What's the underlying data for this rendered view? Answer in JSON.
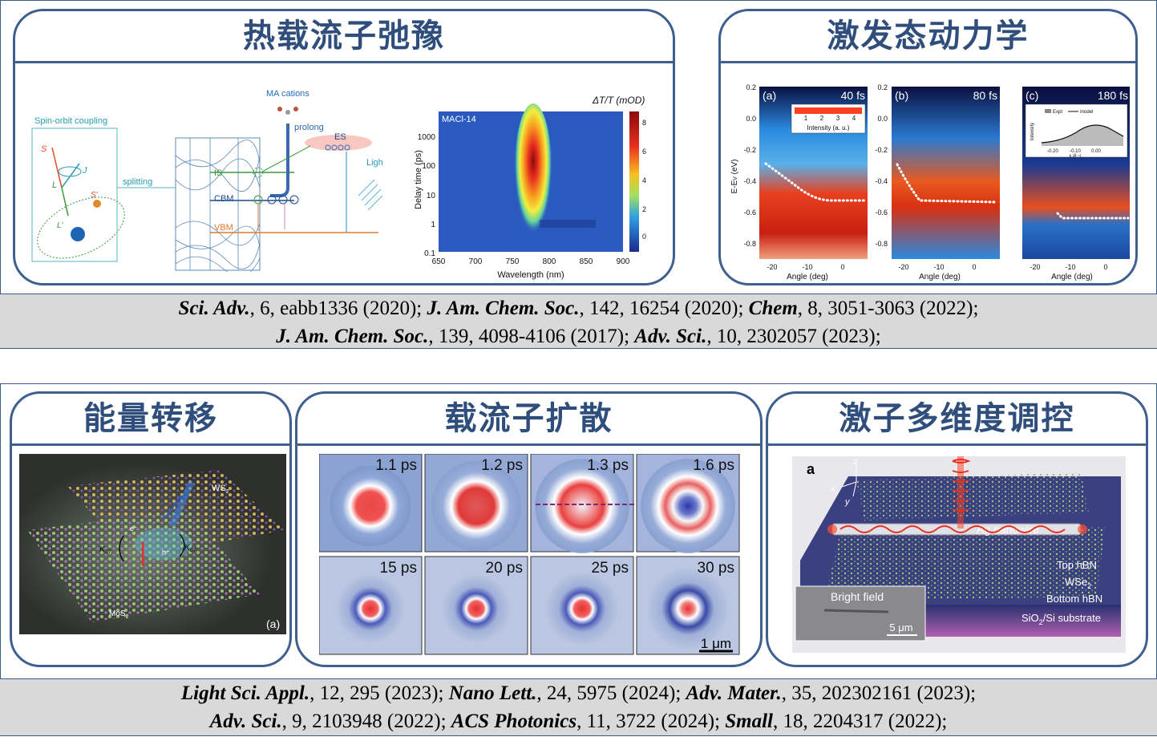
{
  "top_section": {
    "card_hot_carrier": {
      "title": "热载流子弛豫"
    },
    "card_excited_state": {
      "title": "激发态动力学"
    },
    "citations": [
      [
        {
          "j": "Sci. Adv.",
          "d": ", 6, eabb1336 (2020); "
        },
        {
          "j": "J. Am. Chem. Soc.",
          "d": ", 142, 16254 (2020); "
        },
        {
          "j": "Chem",
          "d": ", 8, 3051-3063 (2022);"
        }
      ],
      [
        {
          "j": "J. Am. Chem. Soc.",
          "d": ", 139, 4098-4106 (2017); "
        },
        {
          "j": "Adv. Sci.",
          "d": ", 10, 2302057 (2023);"
        }
      ]
    ]
  },
  "diagram": {
    "spin_orbit": "Spin-orbit coupling",
    "s_label": "S",
    "j_label": "J",
    "l_label": "L",
    "s_prime": "S'",
    "l_prime": "L'",
    "splitting": "splitting",
    "ma_cations": "MA cations",
    "prolong": "prolong",
    "es": "ES",
    "is": "IS",
    "cbm": "CBM",
    "vbm": "VBM",
    "light": "Light"
  },
  "heatmap": {
    "title": "ΔT/T (mOD)",
    "sample": "MACl-14",
    "xlabel": "Wavelength (nm)",
    "ylabel": "Delay time (ps)",
    "xticks": [
      "650",
      "700",
      "750",
      "800",
      "850",
      "900"
    ],
    "yticks": [
      "1000",
      "100",
      "10",
      "1",
      "0.1"
    ],
    "cticks": [
      "8",
      "6",
      "4",
      "2",
      "0"
    ]
  },
  "arpes": {
    "ylabel": "E-E",
    "ylabel_sub": "V",
    "ylabel_unit": " (eV)",
    "yticks": [
      "0.2",
      "0.0",
      "-0.2",
      "-0.4",
      "-0.6",
      "-0.8"
    ],
    "xticks": [
      "-20",
      "-10",
      "0"
    ],
    "xlabel": "Angle (deg)",
    "panels": [
      {
        "tag": "(a)",
        "time": "40 fs"
      },
      {
        "tag": "(b)",
        "time": "80 fs"
      },
      {
        "tag": "(c)",
        "time": "180 fs"
      }
    ],
    "intensity_ticks": [
      "1",
      "2",
      "3",
      "4"
    ],
    "intensity_label": "Intensity (a. u.)",
    "inset_legend_expt": "Expt",
    "inset_legend_model": "model",
    "inset_ylabel": "Intensity",
    "inset_xticks": [
      "-0.20",
      "-0.10",
      "0.00"
    ],
    "inset_xlabel": "k (Å⁻¹)"
  },
  "bottom_section": {
    "card_energy": {
      "title": "能量转移"
    },
    "card_diffusion": {
      "title": "载流子扩散"
    },
    "card_exciton": {
      "title": "激子多维度调控"
    },
    "citations": [
      [
        {
          "j": "Light Sci. Appl.",
          "d": ", 12, 295 (2023); "
        },
        {
          "j": "Nano Lett.",
          "d": ", 24, 5975 (2024); "
        },
        {
          "j": "Adv. Mater.",
          "d": ", 35, 202302161 (2023);"
        }
      ],
      [
        {
          "j": "Adv. Sci.",
          "d": ", 9, 2103948 (2022); "
        },
        {
          "j": "ACS Photonics",
          "d": ", 11, 3722 (2024); "
        },
        {
          "j": "Small",
          "d": ", 18, 2204317 (2022);"
        }
      ]
    ]
  },
  "energy_transfer": {
    "ws2": "WS",
    "ws2_sub": "2",
    "mos2": "MoS",
    "mos2_sub": "2",
    "kct_left": "K",
    "kct_right": "K",
    "kct_sub": "CT",
    "electron": "e⁻",
    "hole": "h⁺",
    "panel": "(a)"
  },
  "diffusion": {
    "cells": [
      "1.1 ps",
      "1.2 ps",
      "1.3 ps",
      "1.6 ps",
      "15 ps",
      "20 ps",
      "25 ps",
      "30 ps"
    ],
    "scalebar": "1 μm"
  },
  "exciton": {
    "panel": "a",
    "axis_z": "z",
    "axis_x": "x",
    "axis_y": "y",
    "nanowire": "Ag nanowire",
    "top_hbn": "Top hBN",
    "wse2": "WSe",
    "wse2_sub": "2",
    "bottom_hbn": "Bottom hBN",
    "substrate_pre": "SiO",
    "substrate_sub": "2",
    "substrate_post": "/Si substrate",
    "bright_field": "Bright field",
    "scalebar": "5 μm"
  },
  "colors": {
    "frame": "#3e5f8f",
    "title": "#2f4e7c",
    "cite_bg": "#d9d9d9"
  }
}
